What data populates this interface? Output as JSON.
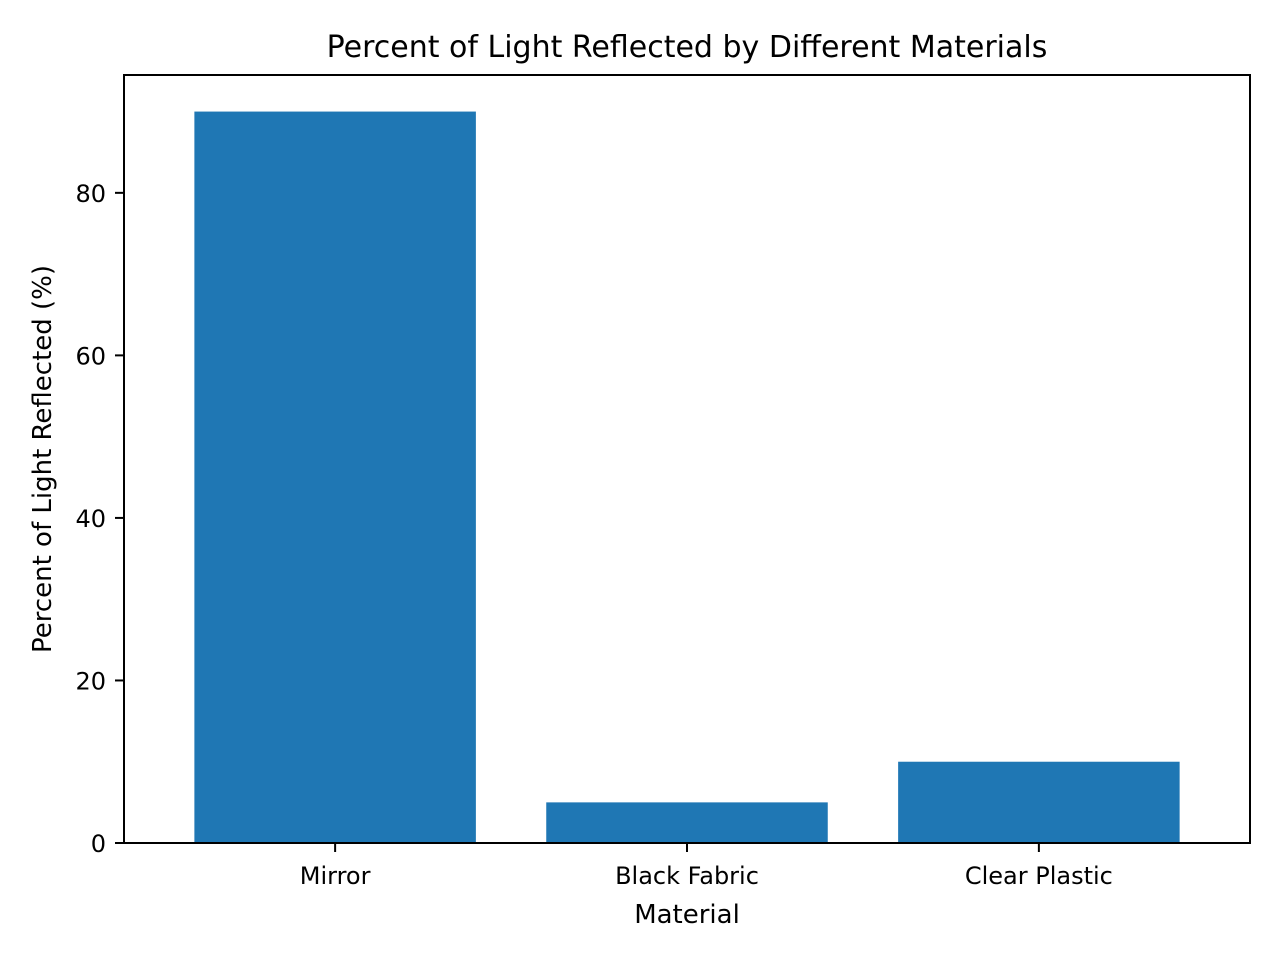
{
  "chart_data": {
    "type": "bar",
    "title": "Percent of Light Reflected by Different Materials",
    "xlabel": "Material",
    "ylabel": "Percent of Light Reflected (%)",
    "categories": [
      "Mirror",
      "Black Fabric",
      "Clear Plastic"
    ],
    "values": [
      90,
      5,
      10
    ],
    "ylim": [
      0,
      94.5
    ],
    "yticks": [
      0,
      20,
      40,
      60,
      80
    ],
    "grid": false,
    "bar_color": "#1f77b4"
  }
}
